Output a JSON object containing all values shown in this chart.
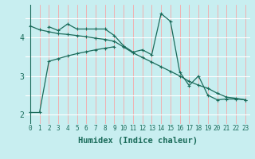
{
  "xlabel": "Humidex (Indice chaleur)",
  "bg_color": "#c8eef0",
  "line_color": "#1a6b5a",
  "grid_color_v": "#ff9999",
  "grid_color_h": "#ffffff",
  "xlim": [
    -0.5,
    23.5
  ],
  "ylim": [
    1.75,
    4.85
  ],
  "yticks": [
    2,
    3,
    4
  ],
  "line1_x": [
    0,
    1,
    2,
    3,
    4,
    5,
    6,
    7,
    8,
    9
  ],
  "line1_y": [
    2.05,
    2.05,
    3.38,
    3.45,
    3.52,
    3.58,
    3.63,
    3.68,
    3.72,
    3.76
  ],
  "line2_x": [
    2,
    3,
    4,
    5,
    6,
    7,
    8,
    9,
    10,
    11,
    12,
    13,
    14,
    15,
    16,
    17,
    18,
    19,
    20,
    21,
    22,
    23
  ],
  "line2_y": [
    4.28,
    4.18,
    4.35,
    4.22,
    4.22,
    4.22,
    4.22,
    4.05,
    3.78,
    3.62,
    3.68,
    3.55,
    4.62,
    4.42,
    3.1,
    2.75,
    3.0,
    2.5,
    2.38,
    2.4,
    2.4,
    2.38
  ],
  "line3_x": [
    0,
    1,
    2,
    3,
    4,
    5,
    6,
    7,
    8,
    9,
    10,
    11,
    12,
    13,
    14,
    15,
    16,
    17,
    18,
    19,
    20,
    21,
    22,
    23
  ],
  "line3_y": [
    4.3,
    4.2,
    4.15,
    4.1,
    4.08,
    4.05,
    4.02,
    3.98,
    3.95,
    3.9,
    3.75,
    3.6,
    3.48,
    3.36,
    3.24,
    3.12,
    3.0,
    2.86,
    2.76,
    2.68,
    2.55,
    2.45,
    2.42,
    2.38
  ],
  "xtick_fontsize": 5.5,
  "ytick_fontsize": 7,
  "xlabel_fontsize": 7.5
}
